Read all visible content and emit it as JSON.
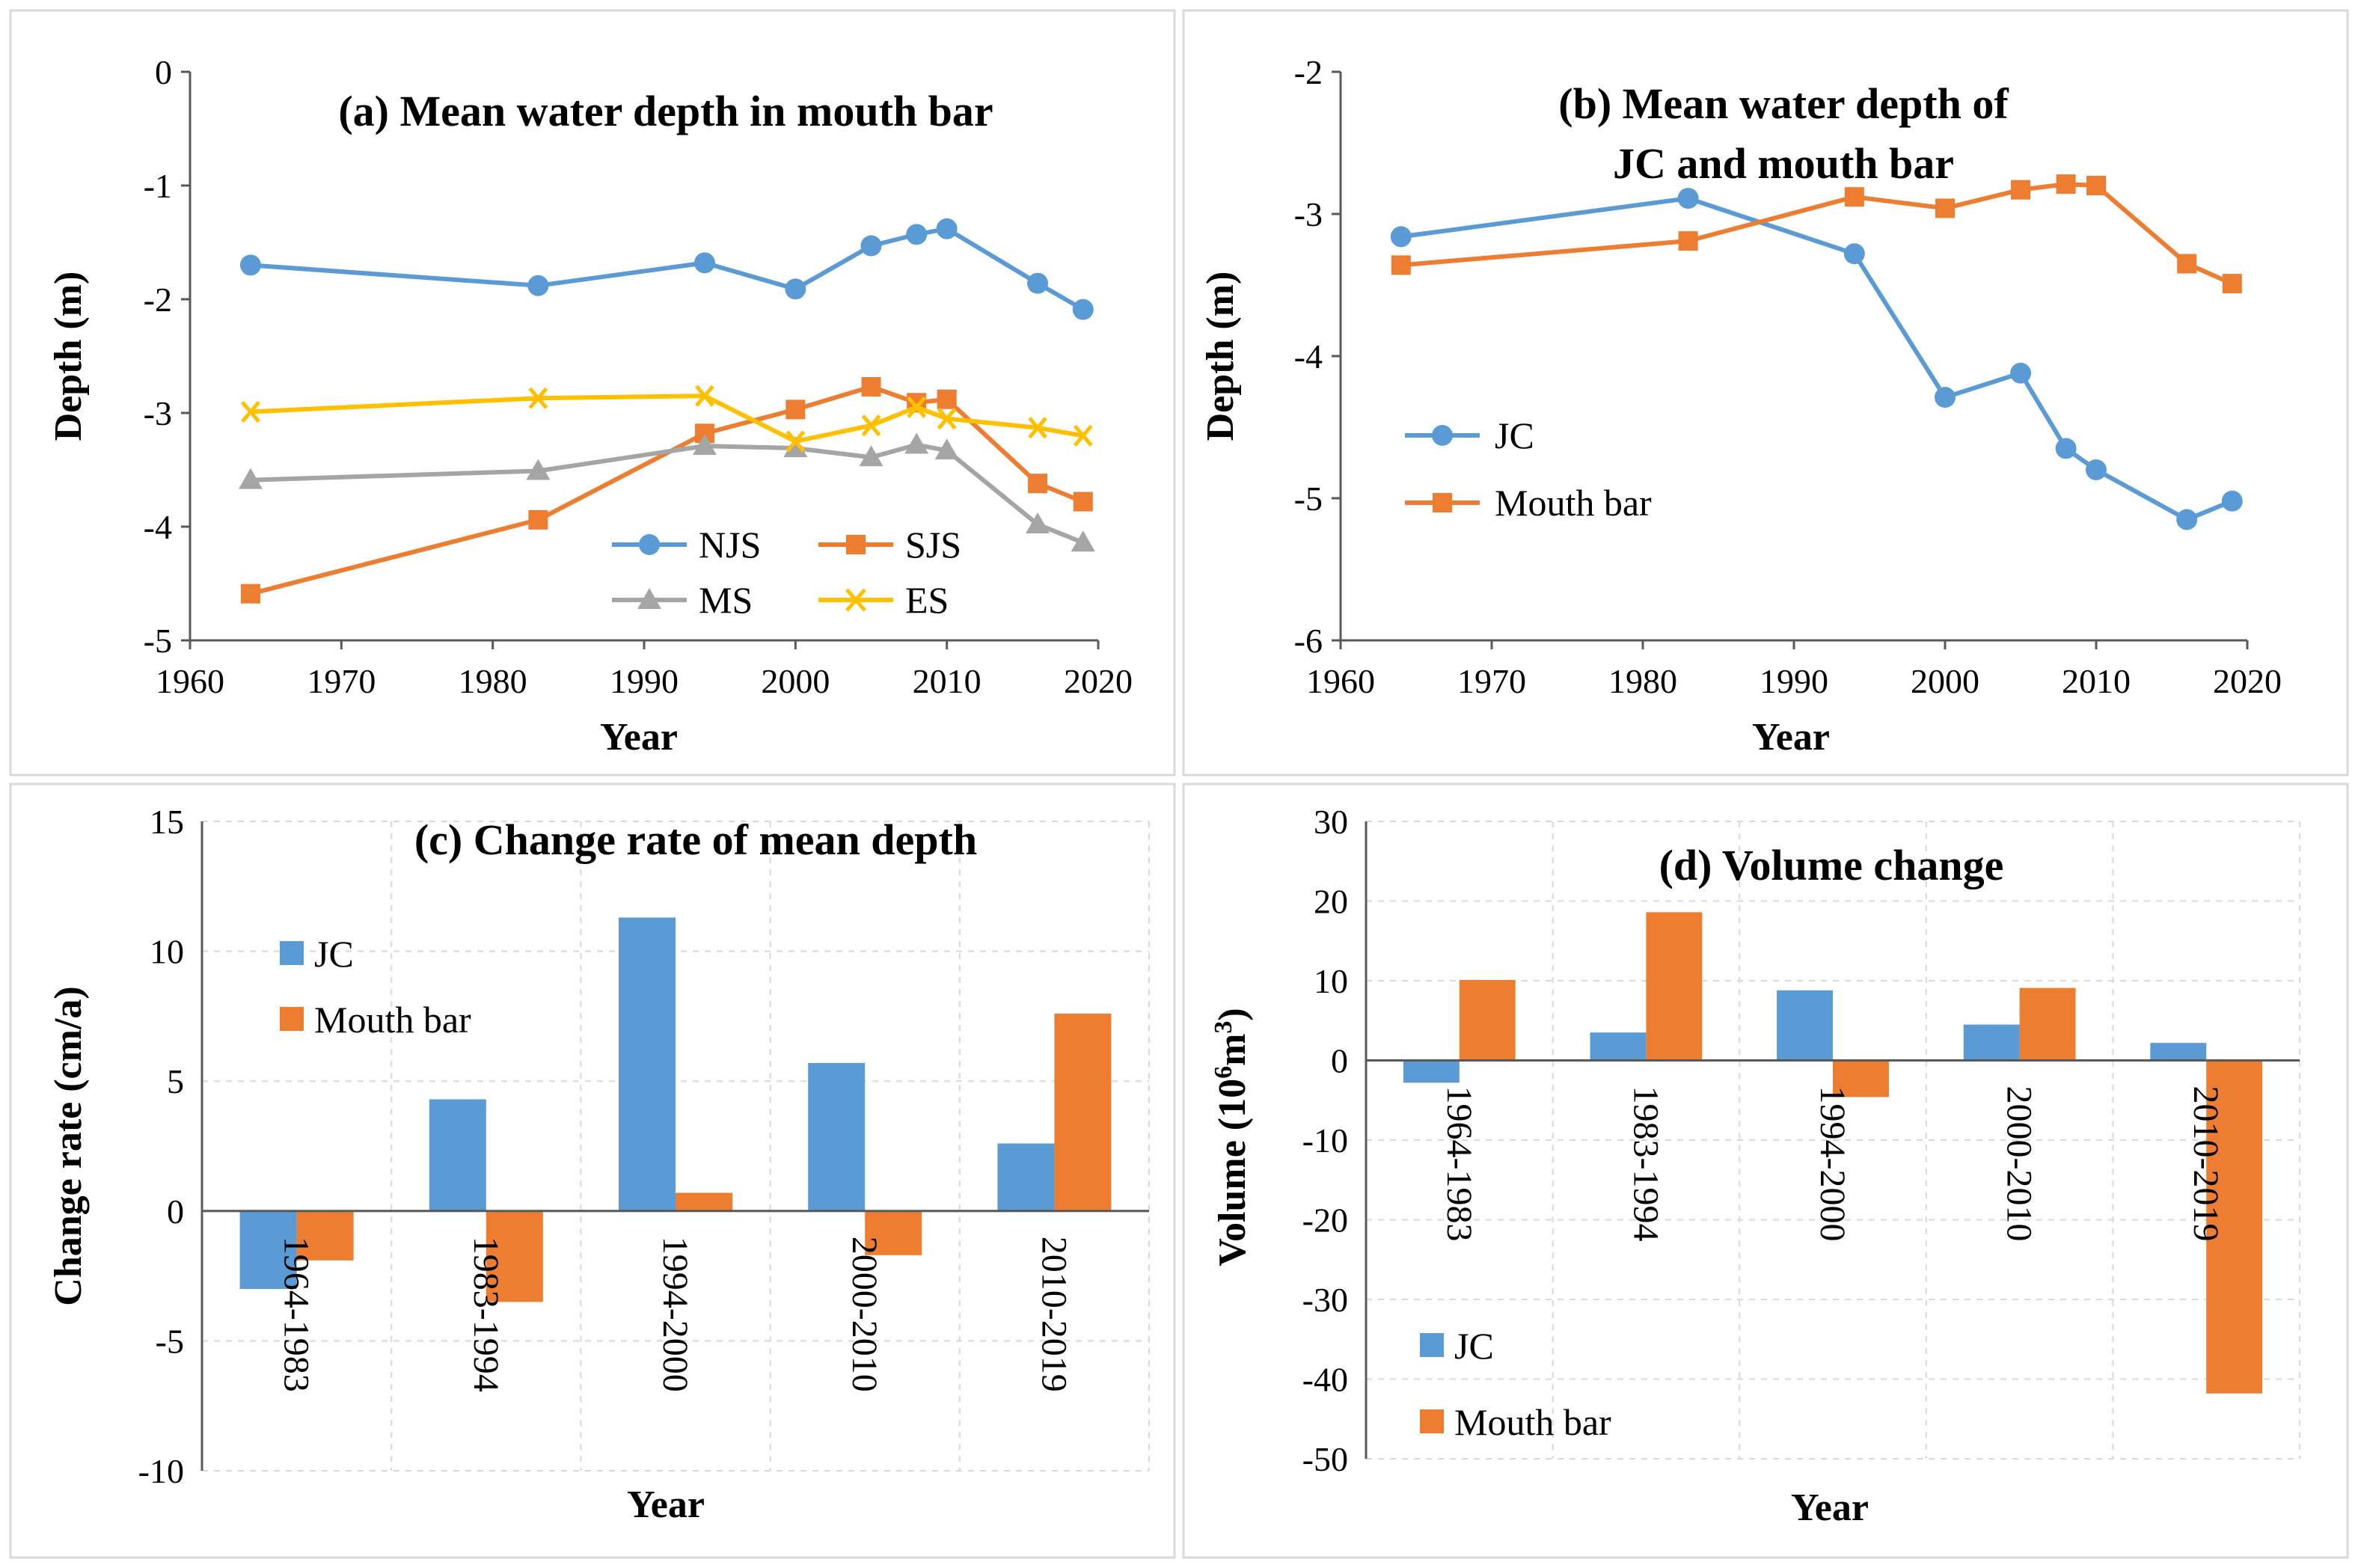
{
  "chart_data": [
    {
      "id": "a",
      "type": "line",
      "title": "(a) Mean water depth in mouth bar",
      "xlabel": "Year",
      "ylabel": "Depth (m)",
      "xlim": [
        1960,
        2020
      ],
      "ylim": [
        -5,
        0
      ],
      "xticks": [
        1960,
        1970,
        1980,
        1990,
        2000,
        2010,
        2020
      ],
      "yticks": [
        0,
        -1,
        -2,
        -3,
        -4,
        -5
      ],
      "x": [
        1964,
        1983,
        1994,
        2000,
        2005,
        2008,
        2010,
        2016,
        2019
      ],
      "series": [
        {
          "name": "NJS",
          "color": "#5b9bd5",
          "marker": "circle",
          "values": [
            -1.7,
            -1.88,
            -1.68,
            -1.91,
            -1.53,
            -1.43,
            -1.38,
            -1.86,
            -2.09
          ]
        },
        {
          "name": "SJS",
          "color": "#ed7d31",
          "marker": "square",
          "values": [
            -4.59,
            -3.94,
            -3.18,
            -2.97,
            -2.77,
            -2.91,
            -2.88,
            -3.62,
            -3.78
          ]
        },
        {
          "name": "MS",
          "color": "#a5a5a5",
          "marker": "triangle",
          "values": [
            -3.59,
            -3.51,
            -3.29,
            -3.31,
            -3.39,
            -3.28,
            -3.33,
            -3.98,
            -4.14
          ]
        },
        {
          "name": "ES",
          "color": "#ffc000",
          "marker": "x",
          "values": [
            -2.99,
            -2.87,
            -2.85,
            -3.25,
            -3.11,
            -2.95,
            -3.05,
            -3.13,
            -3.2
          ]
        }
      ]
    },
    {
      "id": "b",
      "type": "line",
      "title_lines": [
        "(b) Mean water depth of",
        "JC and mouth bar"
      ],
      "xlabel": "Year",
      "ylabel": "Depth (m)",
      "xlim": [
        1960,
        2020
      ],
      "ylim": [
        -6,
        -2
      ],
      "xticks": [
        1960,
        1970,
        1980,
        1990,
        2000,
        2010,
        2020
      ],
      "yticks": [
        -2,
        -3,
        -4,
        -5,
        -6
      ],
      "x": [
        1964,
        1983,
        1994,
        2000,
        2005,
        2008,
        2010,
        2016,
        2019
      ],
      "series": [
        {
          "name": "JC",
          "color": "#5b9bd5",
          "marker": "circle",
          "values": [
            -3.16,
            -2.89,
            -3.28,
            -4.29,
            -4.12,
            -4.65,
            -4.8,
            -5.15,
            -5.02
          ]
        },
        {
          "name": "Mouth bar",
          "color": "#ed7d31",
          "marker": "square",
          "values": [
            -3.36,
            -3.19,
            -2.88,
            -2.96,
            -2.83,
            -2.79,
            -2.8,
            -3.35,
            -3.49
          ]
        }
      ]
    },
    {
      "id": "c",
      "type": "bar",
      "title": "(c) Change rate of mean depth",
      "xlabel": "Year",
      "ylabel": "Change rate (cm/a)",
      "ylim": [
        -10,
        15
      ],
      "yticks": [
        15,
        10,
        5,
        0,
        -5,
        -10
      ],
      "categories": [
        "1964-1983",
        "1983-1994",
        "1994-2000",
        "2000-2010",
        "2010-2019"
      ],
      "series": [
        {
          "name": "JC",
          "color": "#5b9bd5",
          "values": [
            -3.0,
            4.3,
            11.3,
            5.7,
            2.6
          ]
        },
        {
          "name": "Mouth bar",
          "color": "#ed7d31",
          "values": [
            -1.9,
            -3.5,
            0.7,
            -1.7,
            7.6
          ]
        }
      ]
    },
    {
      "id": "d",
      "type": "bar",
      "title": "(d) Volume change",
      "xlabel": "Year",
      "ylabel_main": "Volume (10",
      "ylabel_sup_a": "6",
      "ylabel_mid": "m",
      "ylabel_sup_b": "3",
      "ylabel_end": ")",
      "ylim": [
        -50,
        30
      ],
      "yticks": [
        30,
        20,
        10,
        0,
        -10,
        -20,
        -30,
        -40,
        -50
      ],
      "categories": [
        "1964-1983",
        "1983-1994",
        "1994-2000",
        "2000-2010",
        "2010-2019"
      ],
      "series": [
        {
          "name": "JC",
          "color": "#5b9bd5",
          "values": [
            -2.8,
            3.5,
            8.8,
            4.5,
            2.2
          ]
        },
        {
          "name": "Mouth bar",
          "color": "#ed7d31",
          "values": [
            10.1,
            18.6,
            -4.6,
            9.1,
            -41.8
          ]
        }
      ]
    }
  ]
}
